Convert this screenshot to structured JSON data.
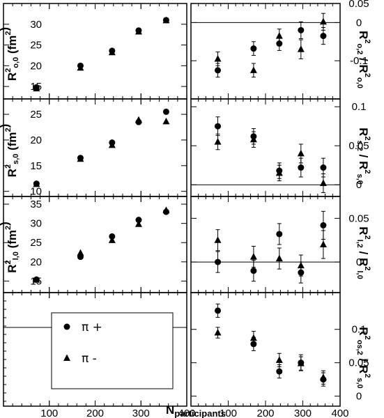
{
  "chart_data": [
    {
      "type": "scatter",
      "panel": "left-1",
      "ylabel": {
        "base": "R",
        "sup": "2",
        "sub": "o,0",
        "rest": " (fm",
        "sup2": "2",
        "end": ")"
      },
      "xlim": [
        0,
        400
      ],
      "ylim": [
        12,
        35
      ],
      "xticks": [
        100,
        200,
        300,
        400
      ],
      "yticks": [
        15,
        20,
        25,
        30
      ],
      "series": [
        {
          "name": "π +",
          "marker": "circle",
          "x": [
            72,
            168,
            237,
            295,
            355
          ],
          "y": [
            14.8,
            20.0,
            23.6,
            28.5,
            31.0
          ],
          "err": [
            0,
            0,
            0,
            0,
            0
          ]
        },
        {
          "name": "π -",
          "marker": "triangle",
          "x": [
            72,
            168,
            237,
            295,
            355
          ],
          "y": [
            14.5,
            19.5,
            23.2,
            28.2,
            30.9
          ],
          "err": [
            0,
            0,
            0,
            0,
            0
          ]
        }
      ]
    },
    {
      "type": "scatter",
      "panel": "right-1",
      "ylabel": {
        "base": "R",
        "sup": "2",
        "sub": "o,2",
        "rest": " / R",
        "sup2": "2",
        "sub2": "o,0"
      },
      "xlim": [
        0,
        400
      ],
      "ylim": [
        -0.2,
        0.05
      ],
      "yticks": [
        0.05,
        0,
        -0.1
      ],
      "yticklabels": [
        "0.05",
        "0",
        "-0.1"
      ],
      "hline": 0,
      "series": [
        {
          "name": "π +",
          "marker": "circle",
          "x": [
            72,
            168,
            237,
            295,
            355
          ],
          "y": [
            -0.125,
            -0.068,
            -0.055,
            -0.02,
            -0.035
          ],
          "err": [
            0.018,
            0.018,
            0.018,
            0.022,
            0.022
          ]
        },
        {
          "name": "π -",
          "marker": "triangle",
          "x": [
            72,
            168,
            237,
            295,
            355
          ],
          "y": [
            -0.095,
            -0.125,
            -0.035,
            -0.07,
            0.002
          ],
          "err": [
            0.018,
            0.018,
            0.018,
            0.025,
            0.022
          ]
        }
      ]
    },
    {
      "type": "scatter",
      "panel": "left-2",
      "ylabel": {
        "base": "R",
        "sup": "2",
        "sub": "s,0",
        "rest": " (fm",
        "sup2": "2",
        "end": ")"
      },
      "xlim": [
        0,
        400
      ],
      "ylim": [
        9,
        28
      ],
      "yticks": [
        10,
        15,
        20,
        25
      ],
      "series": [
        {
          "name": "π +",
          "marker": "circle",
          "x": [
            72,
            168,
            237,
            295,
            355
          ],
          "y": [
            11.5,
            16.5,
            19.5,
            23.5,
            25.5
          ],
          "err": [
            0,
            0,
            0,
            0,
            0
          ]
        },
        {
          "name": "π -",
          "marker": "triangle",
          "x": [
            72,
            168,
            237,
            295,
            355
          ],
          "y": [
            11.4,
            16.3,
            19.0,
            23.9,
            23.6
          ],
          "err": [
            0,
            0,
            0,
            0,
            0
          ]
        }
      ]
    },
    {
      "type": "scatter",
      "panel": "right-2",
      "ylabel": {
        "base": "R",
        "sup": "2",
        "sub": "s,2",
        "rest": " / R",
        "sup2": "2",
        "sub2": "s,0"
      },
      "xlim": [
        0,
        400
      ],
      "ylim": [
        -0.015,
        0.11
      ],
      "yticks": [
        0.1,
        0.05,
        0
      ],
      "yticklabels": [
        "0.1",
        "0.05",
        "0"
      ],
      "hline": 0,
      "series": [
        {
          "name": "π +",
          "marker": "circle",
          "x": [
            72,
            168,
            237,
            295,
            355
          ],
          "y": [
            0.075,
            0.062,
            0.018,
            0.022,
            0.022
          ],
          "err": [
            0.012,
            0.01,
            0.01,
            0.012,
            0.012
          ]
        },
        {
          "name": "π -",
          "marker": "triangle",
          "x": [
            72,
            168,
            237,
            295,
            355
          ],
          "y": [
            0.055,
            0.058,
            0.015,
            0.04,
            0.002
          ],
          "err": [
            0.01,
            0.01,
            0.01,
            0.012,
            0.012
          ]
        }
      ]
    },
    {
      "type": "scatter",
      "panel": "left-3",
      "ylabel": {
        "base": "R",
        "sup": "2",
        "sub": "l,0",
        "rest": " (fm",
        "sup2": "2",
        "end": ")"
      },
      "xlim": [
        0,
        400
      ],
      "ylim": [
        12,
        37
      ],
      "yticks": [
        15,
        20,
        25,
        30,
        35
      ],
      "series": [
        {
          "name": "π +",
          "marker": "circle",
          "x": [
            72,
            168,
            237,
            295,
            355
          ],
          "y": [
            15.4,
            21.3,
            26.6,
            30.9,
            33.0
          ],
          "err": [
            0,
            0,
            0,
            0,
            0
          ]
        },
        {
          "name": "π -",
          "marker": "triangle",
          "x": [
            72,
            168,
            237,
            295,
            355
          ],
          "y": [
            15.3,
            22.3,
            25.6,
            29.8,
            33.4
          ],
          "err": [
            0,
            0,
            0,
            0,
            0
          ]
        }
      ]
    },
    {
      "type": "scatter",
      "panel": "right-3",
      "ylabel": {
        "base": "R",
        "sup": "2",
        "sub": "l,2",
        "rest": " / R",
        "sup2": "2",
        "sub2": "l,0"
      },
      "xlim": [
        0,
        400
      ],
      "ylim": [
        -0.035,
        0.075
      ],
      "yticks": [
        0.05,
        0
      ],
      "yticklabels": [
        "0.05",
        "0"
      ],
      "hline": 0,
      "series": [
        {
          "name": "π +",
          "marker": "circle",
          "x": [
            72,
            168,
            237,
            295,
            355
          ],
          "y": [
            0.0,
            -0.01,
            0.032,
            -0.012,
            0.042
          ],
          "err": [
            0.012,
            0.012,
            0.012,
            0.012,
            0.016
          ]
        },
        {
          "name": "π -",
          "marker": "triangle",
          "x": [
            72,
            168,
            237,
            295,
            355
          ],
          "y": [
            0.025,
            0.006,
            0.004,
            -0.004,
            0.02
          ],
          "err": [
            0.012,
            0.012,
            0.012,
            0.012,
            0.016
          ]
        }
      ]
    },
    {
      "type": "scatter",
      "panel": "right-4",
      "ylabel": {
        "base": "R",
        "sup": "2",
        "sub": "os,2",
        "rest": " / R",
        "sup2": "2",
        "sub2": "s,0"
      },
      "xlabel": {
        "base": "N",
        "sub": "participants"
      },
      "xlim": [
        0,
        400
      ],
      "ylim": [
        -0.015,
        0.155
      ],
      "yticks": [
        0.1,
        0.05,
        0
      ],
      "yticklabels": [
        "0.1",
        "0.05",
        "0"
      ],
      "series": [
        {
          "name": "π +",
          "marker": "circle",
          "x": [
            72,
            168,
            237,
            295,
            355
          ],
          "y": [
            0.128,
            0.078,
            0.037,
            0.05,
            0.025
          ],
          "err": [
            0.01,
            0.01,
            0.01,
            0.012,
            0.01
          ]
        },
        {
          "name": "π -",
          "marker": "triangle",
          "x": [
            72,
            168,
            237,
            295,
            355
          ],
          "y": [
            0.095,
            0.087,
            0.054,
            0.049,
            0.028
          ],
          "err": [
            0.008,
            0.01,
            0.01,
            0.01,
            0.01
          ]
        }
      ]
    },
    {
      "type": "legend",
      "panel": "left-4",
      "xlabel": {
        "base": "N",
        "sub": "participants"
      },
      "xticks": [
        100,
        200,
        300,
        400
      ],
      "entries": [
        {
          "label": "π +",
          "marker": "circle"
        },
        {
          "label": "π -",
          "marker": "triangle"
        }
      ]
    }
  ]
}
